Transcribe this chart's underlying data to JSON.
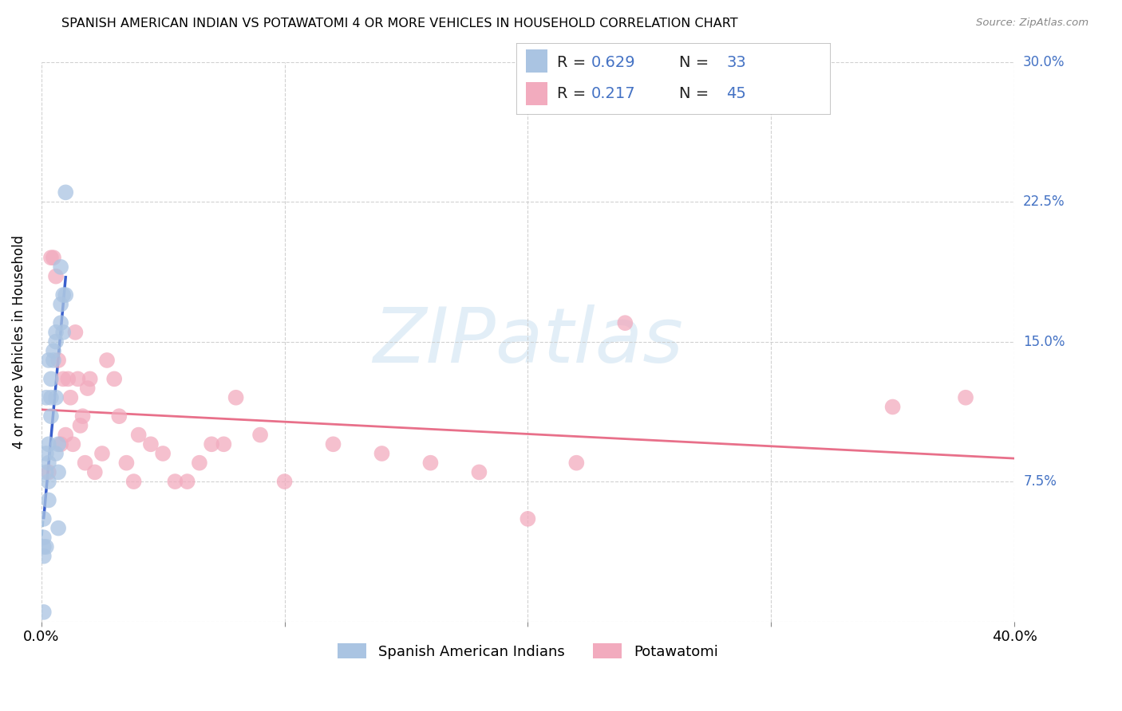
{
  "title": "SPANISH AMERICAN INDIAN VS POTAWATOMI 4 OR MORE VEHICLES IN HOUSEHOLD CORRELATION CHART",
  "source": "Source: ZipAtlas.com",
  "ylabel": "4 or more Vehicles in Household",
  "xlim": [
    0.0,
    0.4
  ],
  "ylim": [
    0.0,
    0.3
  ],
  "color_blue": "#aac4e2",
  "color_pink": "#f2abbe",
  "trendline_blue": "#3a5fcd",
  "trendline_pink": "#e8708a",
  "trendline_dashed_blue": "#90b8dc",
  "blue_label_r": "0.629",
  "blue_label_n": "33",
  "pink_label_r": "0.217",
  "pink_label_n": "45",
  "legend_color": "#4472c4",
  "watermark": "ZIPatlas",
  "legend_bottom_label1": "Spanish American Indians",
  "legend_bottom_label2": "Potawatomi",
  "blue_x": [
    0.001,
    0.001,
    0.001,
    0.001,
    0.001,
    0.002,
    0.002,
    0.002,
    0.002,
    0.003,
    0.003,
    0.003,
    0.003,
    0.003,
    0.004,
    0.004,
    0.004,
    0.005,
    0.005,
    0.006,
    0.006,
    0.006,
    0.006,
    0.007,
    0.007,
    0.007,
    0.008,
    0.008,
    0.008,
    0.009,
    0.009,
    0.01,
    0.01
  ],
  "blue_y": [
    0.055,
    0.045,
    0.04,
    0.035,
    0.005,
    0.12,
    0.09,
    0.08,
    0.04,
    0.14,
    0.095,
    0.085,
    0.075,
    0.065,
    0.13,
    0.12,
    0.11,
    0.145,
    0.14,
    0.155,
    0.15,
    0.12,
    0.09,
    0.095,
    0.08,
    0.05,
    0.19,
    0.17,
    0.16,
    0.175,
    0.155,
    0.23,
    0.175
  ],
  "pink_x": [
    0.003,
    0.004,
    0.005,
    0.006,
    0.007,
    0.008,
    0.009,
    0.01,
    0.011,
    0.012,
    0.013,
    0.014,
    0.015,
    0.016,
    0.017,
    0.018,
    0.019,
    0.02,
    0.022,
    0.025,
    0.027,
    0.03,
    0.032,
    0.035,
    0.038,
    0.04,
    0.045,
    0.05,
    0.055,
    0.06,
    0.065,
    0.07,
    0.075,
    0.08,
    0.09,
    0.1,
    0.12,
    0.14,
    0.16,
    0.18,
    0.2,
    0.22,
    0.24,
    0.35,
    0.38
  ],
  "pink_y": [
    0.08,
    0.195,
    0.195,
    0.185,
    0.14,
    0.095,
    0.13,
    0.1,
    0.13,
    0.12,
    0.095,
    0.155,
    0.13,
    0.105,
    0.11,
    0.085,
    0.125,
    0.13,
    0.08,
    0.09,
    0.14,
    0.13,
    0.11,
    0.085,
    0.075,
    0.1,
    0.095,
    0.09,
    0.075,
    0.075,
    0.085,
    0.095,
    0.095,
    0.12,
    0.1,
    0.075,
    0.095,
    0.09,
    0.085,
    0.08,
    0.055,
    0.085,
    0.16,
    0.115,
    0.12
  ]
}
